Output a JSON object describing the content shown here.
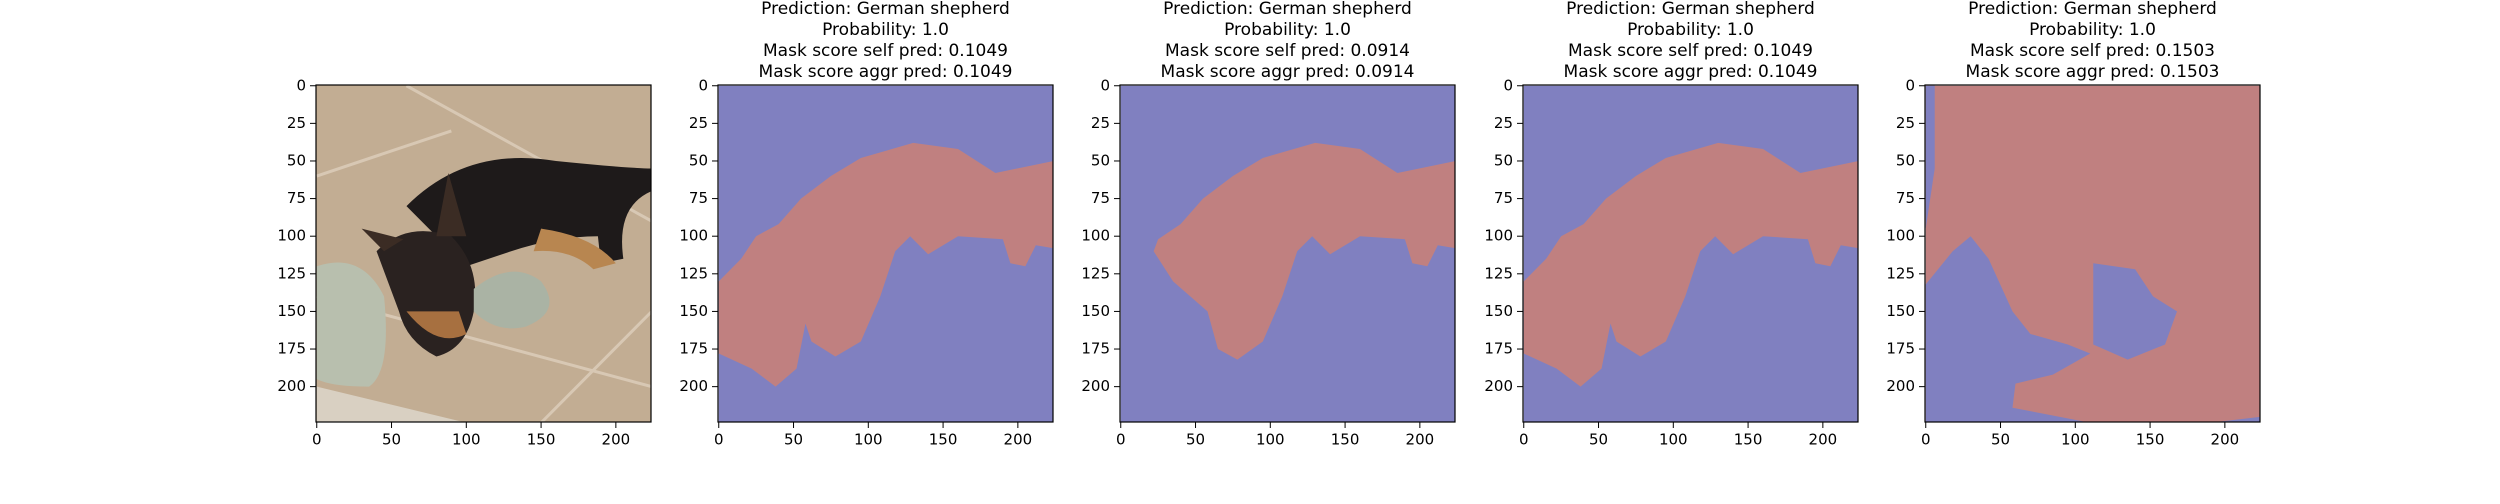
{
  "mask_panels": [
    {
      "lines": [
        "Prediction: German shepherd",
        "Probability: 1.0",
        "Mask score self pred: 0.1049",
        "Mask score aggr pred: 0.1049"
      ]
    },
    {
      "lines": [
        "Prediction: German shepherd",
        "Probability: 1.0",
        "Mask score self pred: 0.0914",
        "Mask score aggr pred: 0.0914"
      ]
    },
    {
      "lines": [
        "Prediction: German shepherd",
        "Probability: 1.0",
        "Mask score self pred: 0.1049",
        "Mask score aggr pred: 0.1049"
      ]
    },
    {
      "lines": [
        "Prediction: German shepherd",
        "Probability: 1.0",
        "Mask score self pred: 0.1503",
        "Mask score aggr pred: 0.1503"
      ]
    }
  ],
  "xticks": [
    0,
    50,
    100,
    150,
    200
  ],
  "yticks": [
    0,
    25,
    50,
    75,
    100,
    125,
    150,
    175,
    200
  ]
}
